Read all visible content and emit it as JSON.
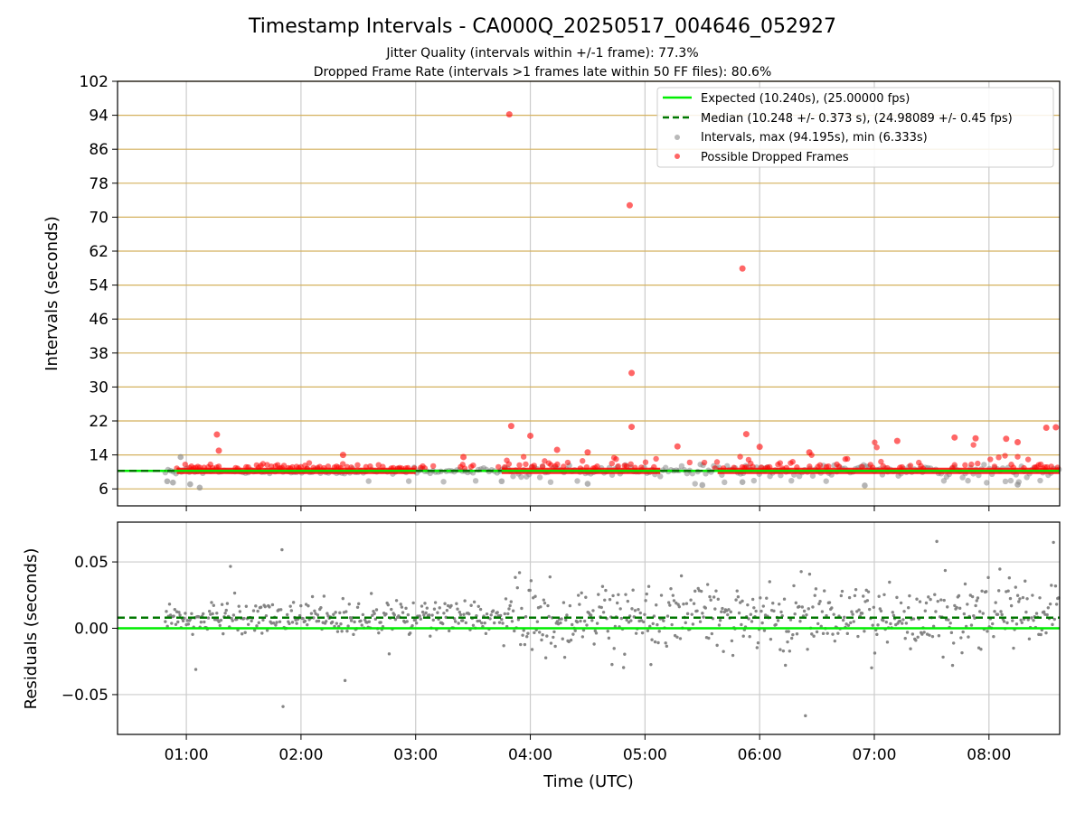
{
  "chart_data": {
    "type": "scatter",
    "title": "Timestamp Intervals - CA000Q_20250517_004646_052927",
    "subtitle_1": "Jitter Quality (intervals within +/-1 frame): 77.3%",
    "subtitle_2": "Dropped Frame Rate (intervals >1 frames late within 50 FF files): 80.6%",
    "xlabel": "Time (UTC)",
    "x_ticks": [
      "01:00",
      "02:00",
      "03:00",
      "04:00",
      "05:00",
      "06:00",
      "07:00",
      "08:00"
    ],
    "xlim": [
      "00:24",
      "08:37"
    ],
    "colors": {
      "expected": "#00ee00",
      "median": "#007700",
      "intervals": "#808080",
      "dropped": "#ff0000",
      "hgrid_top": "#d4b15e",
      "vgrid": "#cccccc"
    },
    "top_panel": {
      "ylabel": "Intervals (seconds)",
      "ylim": [
        2,
        102
      ],
      "y_ticks": [
        "6",
        "14",
        "22",
        "30",
        "38",
        "46",
        "54",
        "62",
        "70",
        "78",
        "86",
        "94",
        "102"
      ],
      "legend_position": "upper right",
      "legend": [
        "Expected (10.240s), (25.00000 fps)",
        "Median (10.248 +/- 0.373 s), (24.98089 +/- 0.45 fps)",
        "Intervals, max (94.195s), min (6.333s)",
        "Possible Dropped Frames"
      ],
      "expected_interval": 10.24,
      "median_interval": 10.248,
      "median_segments": [
        [
          "00:24",
          "00:49"
        ],
        [
          "00:50",
          "00:55"
        ],
        [
          "03:00",
          "03:45"
        ],
        [
          "05:08",
          "05:38"
        ]
      ],
      "dropped_dense_band": {
        "value": 10.24,
        "segments": [
          [
            "00:55",
            "03:00"
          ],
          [
            "03:45",
            "05:08"
          ],
          [
            "05:38",
            "08:37"
          ]
        ]
      },
      "outliers_dropped": [
        {
          "t": "03:49",
          "v": 94.2
        },
        {
          "t": "04:52",
          "v": 72.8
        },
        {
          "t": "05:51",
          "v": 57.9
        },
        {
          "t": "04:53",
          "v": 33.3
        },
        {
          "t": "03:50",
          "v": 20.8
        },
        {
          "t": "04:53",
          "v": 20.6
        },
        {
          "t": "08:35",
          "v": 20.5
        },
        {
          "t": "08:30",
          "v": 20.4
        },
        {
          "t": "01:16",
          "v": 18.8
        },
        {
          "t": "04:00",
          "v": 18.5
        },
        {
          "t": "05:53",
          "v": 18.9
        },
        {
          "t": "07:12",
          "v": 17.3
        },
        {
          "t": "07:42",
          "v": 18.1
        },
        {
          "t": "07:53",
          "v": 17.9
        },
        {
          "t": "08:09",
          "v": 17.8
        },
        {
          "t": "08:15",
          "v": 17.0
        },
        {
          "t": "05:17",
          "v": 16.0
        },
        {
          "t": "06:00",
          "v": 15.9
        },
        {
          "t": "01:17",
          "v": 15.0
        },
        {
          "t": "02:22",
          "v": 14.0
        },
        {
          "t": "03:25",
          "v": 13.5
        },
        {
          "t": "04:14",
          "v": 15.2
        },
        {
          "t": "04:30",
          "v": 14.6
        },
        {
          "t": "06:26",
          "v": 14.6
        }
      ],
      "outliers_gray": [
        {
          "t": "00:50",
          "v": 7.8
        },
        {
          "t": "00:53",
          "v": 7.5
        },
        {
          "t": "00:57",
          "v": 13.5
        },
        {
          "t": "01:02",
          "v": 7.1
        },
        {
          "t": "01:07",
          "v": 6.3
        },
        {
          "t": "03:45",
          "v": 7.8
        },
        {
          "t": "04:30",
          "v": 7.2
        },
        {
          "t": "05:30",
          "v": 6.9
        },
        {
          "t": "05:51",
          "v": 7.6
        },
        {
          "t": "06:55",
          "v": 6.8
        },
        {
          "t": "08:15",
          "v": 7.0
        }
      ]
    },
    "bottom_panel": {
      "ylabel": "Residuals (seconds)",
      "ylim": [
        -0.08,
        0.08
      ],
      "y_ticks": [
        "−0.05",
        "0.00",
        "0.05"
      ],
      "expected_residual": 0.0,
      "median_residual": 0.008
    }
  }
}
